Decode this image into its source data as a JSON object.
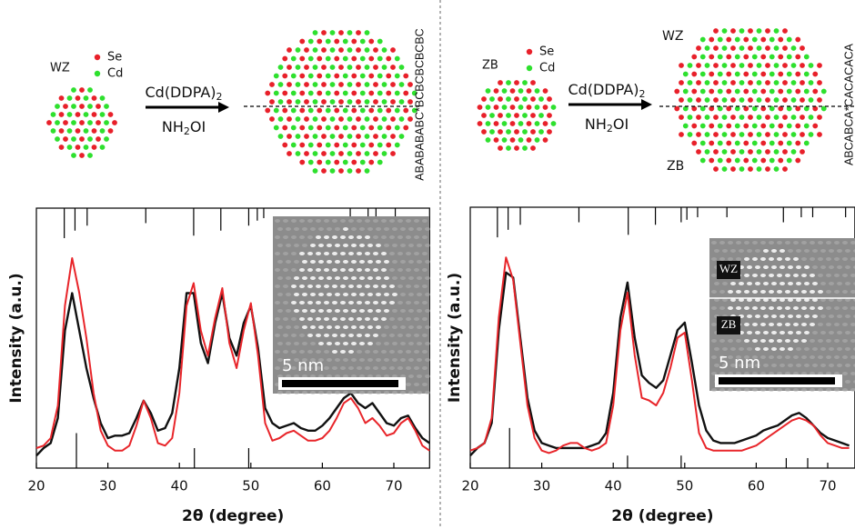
{
  "chart_data": [
    {
      "type": "line",
      "x_label": "2θ (degree)",
      "y_label": "Intensity (a.u.)",
      "xlim": [
        20,
        75
      ],
      "xticks": [
        20,
        30,
        40,
        50,
        60,
        70
      ],
      "ylim": [
        0,
        104
      ],
      "x": [
        20,
        21,
        22,
        23,
        24,
        25,
        26,
        27,
        28,
        29,
        30,
        31,
        32,
        33,
        34,
        35,
        36,
        37,
        38,
        39,
        40,
        41,
        42,
        43,
        44,
        45,
        46,
        47,
        48,
        49,
        50,
        51,
        52,
        53,
        54,
        55,
        56,
        57,
        58,
        59,
        60,
        61,
        62,
        63,
        64,
        65,
        66,
        67,
        68,
        69,
        70,
        71,
        72,
        73,
        74,
        75
      ],
      "series": [
        {
          "color": "#111111",
          "values": [
            5,
            8,
            10,
            20,
            55,
            70,
            55,
            40,
            28,
            18,
            12,
            13,
            13,
            14,
            20,
            27,
            22,
            15,
            16,
            22,
            40,
            70,
            70,
            50,
            42,
            58,
            70,
            52,
            45,
            58,
            65,
            48,
            24,
            18,
            16,
            17,
            18,
            16,
            15,
            15,
            17,
            20,
            24,
            28,
            30,
            26,
            24,
            26,
            22,
            18,
            17,
            20,
            21,
            16,
            12,
            10
          ]
        },
        {
          "color": "#e8252a",
          "values": [
            8,
            9,
            12,
            25,
            65,
            84,
            70,
            52,
            30,
            15,
            9,
            7,
            7,
            9,
            17,
            27,
            20,
            10,
            9,
            12,
            30,
            65,
            74,
            55,
            45,
            60,
            72,
            50,
            40,
            55,
            66,
            45,
            18,
            11,
            12,
            14,
            15,
            13,
            11,
            11,
            12,
            15,
            20,
            26,
            28,
            24,
            18,
            20,
            17,
            13,
            14,
            18,
            20,
            15,
            9,
            7
          ]
        }
      ],
      "reference_top": {
        "x": [
          23.9,
          25.4,
          27.1,
          35.3,
          42.0,
          45.8,
          49.7,
          50.9,
          51.8,
          63.9,
          66.4,
          67.5,
          70.2
        ],
        "lengths": [
          12,
          9,
          7,
          6,
          11,
          9,
          7,
          5,
          4,
          7,
          4,
          4,
          4
        ]
      },
      "reference_bottom": {
        "x": [
          25.6,
          42.1,
          49.7
        ],
        "lengths": [
          14,
          8,
          8
        ]
      },
      "annotations": {
        "initial_phase": "WZ",
        "legend_se": "Se",
        "legend_cd": "Cd",
        "reagent": {
          "text": "Cd(DDPA)",
          "sub": "2"
        },
        "reductant": {
          "pre": "NH",
          "sub": "2",
          "post": "OI"
        },
        "stacking": "ABABABABC*BCBCBCBCBC",
        "scale_bar": "5 nm"
      }
    },
    {
      "type": "line",
      "x_label": "2θ (degree)",
      "y_label": "Intensity (a.u.)",
      "xlim": [
        20,
        73.8
      ],
      "xticks": [
        20,
        30,
        40,
        50,
        60,
        70
      ],
      "ylim": [
        0,
        104
      ],
      "x": [
        20,
        21,
        22,
        23,
        24,
        25,
        26,
        27,
        28,
        29,
        30,
        31,
        32,
        33,
        34,
        35,
        36,
        37,
        38,
        39,
        40,
        41,
        42,
        43,
        44,
        45,
        46,
        47,
        48,
        49,
        50,
        51,
        52,
        53,
        54,
        55,
        56,
        57,
        58,
        59,
        60,
        61,
        62,
        63,
        64,
        65,
        66,
        67,
        68,
        69,
        70,
        71,
        72,
        73
      ],
      "series": [
        {
          "color": "#111111",
          "values": [
            5,
            8,
            10,
            18,
            55,
            78,
            76,
            52,
            28,
            15,
            10,
            9,
            8,
            8,
            8,
            8,
            8,
            9,
            10,
            14,
            30,
            60,
            74,
            52,
            37,
            34,
            32,
            35,
            45,
            55,
            58,
            42,
            25,
            15,
            11,
            10,
            10,
            10,
            11,
            12,
            13,
            15,
            16,
            17,
            19,
            21,
            22,
            20,
            17,
            14,
            12,
            11,
            10,
            9
          ]
        },
        {
          "color": "#e8252a",
          "values": [
            7,
            8,
            10,
            20,
            60,
            84,
            75,
            50,
            25,
            12,
            7,
            6,
            7,
            9,
            10,
            10,
            8,
            7,
            8,
            10,
            25,
            55,
            70,
            45,
            28,
            27,
            25,
            30,
            40,
            52,
            54,
            35,
            14,
            8,
            7,
            7,
            7,
            7,
            7,
            8,
            9,
            11,
            13,
            15,
            17,
            19,
            20,
            19,
            17,
            13,
            10,
            9,
            8,
            8
          ]
        }
      ],
      "reference_top": {
        "x": [
          23.8,
          25.3,
          27.0,
          35.2,
          42.1,
          45.9,
          49.5,
          50.3,
          51.8,
          55.9,
          63.8,
          66.3,
          67.9,
          72.5
        ],
        "lengths": [
          12,
          9,
          7,
          6,
          11,
          7,
          6,
          5,
          4,
          4,
          6,
          4,
          4,
          4
        ]
      },
      "reference_bottom": {
        "x": [
          25.5,
          42.0,
          49.5,
          64.2,
          67.2
        ],
        "lengths": [
          16,
          5,
          5,
          4,
          4
        ]
      },
      "annotations": {
        "initial_phase": "ZB",
        "legend_se": "Se",
        "legend_cd": "Cd",
        "reagent": {
          "text": "Cd(DDPA)",
          "sub": "2"
        },
        "reductant": {
          "pre": "NH",
          "sub": "2",
          "post": "OI"
        },
        "product_labels": [
          "WZ",
          "ZB"
        ],
        "tem_labels": [
          "WZ",
          "ZB"
        ],
        "stacking": "ABCABCA*CACACACA",
        "scale_bar": "5 nm"
      }
    }
  ]
}
